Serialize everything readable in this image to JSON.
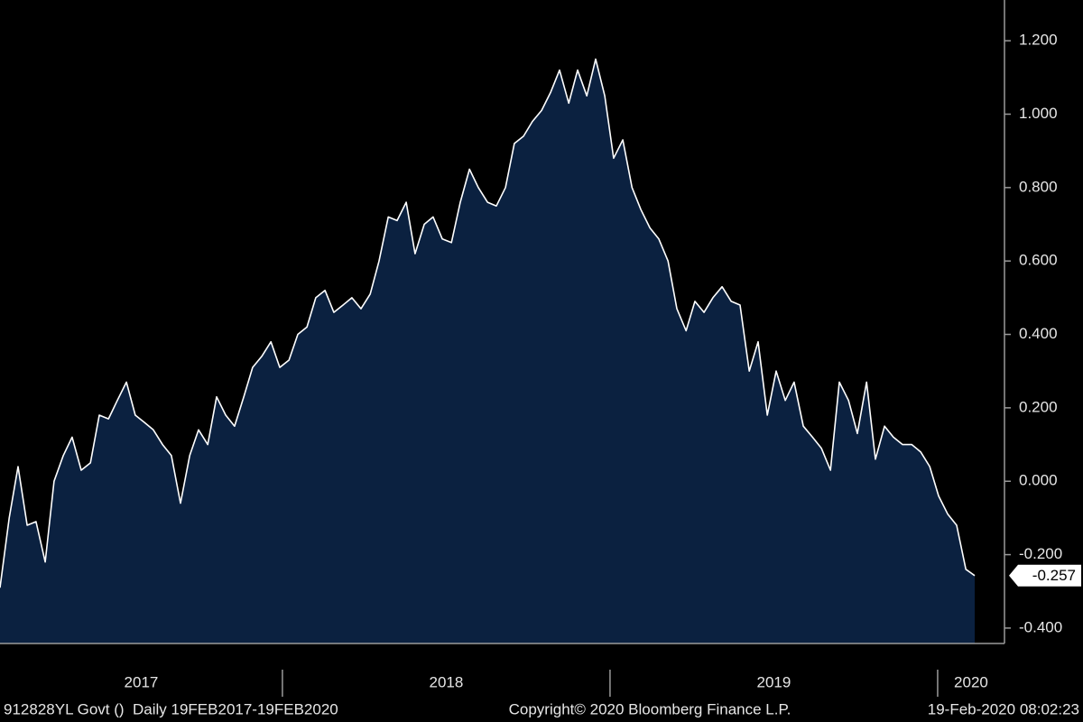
{
  "chart_data": {
    "type": "area",
    "x": [
      2017.138,
      2017.166,
      2017.193,
      2017.221,
      2017.248,
      2017.276,
      2017.303,
      2017.331,
      2017.358,
      2017.386,
      2017.414,
      2017.441,
      2017.469,
      2017.496,
      2017.524,
      2017.551,
      2017.579,
      2017.606,
      2017.634,
      2017.661,
      2017.689,
      2017.717,
      2017.744,
      2017.772,
      2017.799,
      2017.827,
      2017.854,
      2017.882,
      2017.909,
      2017.937,
      2017.965,
      2017.992,
      2018.02,
      2018.047,
      2018.075,
      2018.102,
      2018.13,
      2018.157,
      2018.185,
      2018.212,
      2018.24,
      2018.268,
      2018.295,
      2018.323,
      2018.35,
      2018.378,
      2018.405,
      2018.433,
      2018.46,
      2018.488,
      2018.516,
      2018.543,
      2018.571,
      2018.598,
      2018.626,
      2018.653,
      2018.681,
      2018.708,
      2018.736,
      2018.763,
      2018.791,
      2018.819,
      2018.846,
      2018.874,
      2018.901,
      2018.929,
      2018.956,
      2018.984,
      2019.011,
      2019.039,
      2019.067,
      2019.094,
      2019.122,
      2019.149,
      2019.177,
      2019.204,
      2019.232,
      2019.259,
      2019.287,
      2019.314,
      2019.342,
      2019.37,
      2019.397,
      2019.425,
      2019.452,
      2019.48,
      2019.507,
      2019.535,
      2019.562,
      2019.59,
      2019.618,
      2019.645,
      2019.673,
      2019.7,
      2019.728,
      2019.755,
      2019.783,
      2019.81,
      2019.838,
      2019.865,
      2019.893,
      2019.921,
      2019.948,
      2019.976,
      2020.003,
      2020.031,
      2020.058,
      2020.086,
      2020.113
    ],
    "series": [
      {
        "color": "#ffffff",
        "fill": "#0b2140",
        "values": [
          -0.29,
          -0.1,
          0.04,
          -0.12,
          -0.11,
          -0.22,
          0.0,
          0.07,
          0.12,
          0.03,
          0.05,
          0.18,
          0.17,
          0.22,
          0.27,
          0.18,
          0.16,
          0.14,
          0.1,
          0.07,
          -0.06,
          0.07,
          0.14,
          0.1,
          0.23,
          0.18,
          0.15,
          0.23,
          0.31,
          0.34,
          0.38,
          0.31,
          0.33,
          0.4,
          0.42,
          0.5,
          0.52,
          0.46,
          0.48,
          0.5,
          0.47,
          0.51,
          0.6,
          0.72,
          0.71,
          0.76,
          0.62,
          0.7,
          0.72,
          0.66,
          0.65,
          0.76,
          0.85,
          0.8,
          0.76,
          0.75,
          0.8,
          0.92,
          0.94,
          0.98,
          1.01,
          1.06,
          1.12,
          1.03,
          1.12,
          1.05,
          1.15,
          1.05,
          0.88,
          0.93,
          0.8,
          0.74,
          0.69,
          0.66,
          0.6,
          0.47,
          0.41,
          0.49,
          0.46,
          0.5,
          0.53,
          0.49,
          0.48,
          0.3,
          0.38,
          0.18,
          0.3,
          0.22,
          0.27,
          0.15,
          0.12,
          0.09,
          0.03,
          0.27,
          0.22,
          0.13,
          0.27,
          0.06,
          0.15,
          0.12,
          0.1,
          0.1,
          0.08,
          0.04,
          -0.04,
          -0.09,
          -0.12,
          -0.24,
          -0.257
        ]
      }
    ],
    "xlim": [
      2017.138,
      2020.204
    ],
    "x_dividers": [
      2018,
      2019,
      2020
    ],
    "x_labels": [
      "2017",
      "2018",
      "2019",
      "2020"
    ],
    "ylim": [
      -0.442,
      1.311
    ],
    "yticks": [
      {
        "value": -0.4,
        "label": "-0.400"
      },
      {
        "value": -0.2,
        "label": "-0.200"
      },
      {
        "value": 0,
        "label": "0.000"
      },
      {
        "value": 0.2,
        "label": "0.200"
      },
      {
        "value": 0.4,
        "label": "0.400"
      },
      {
        "value": 0.6,
        "label": "0.600"
      },
      {
        "value": 0.8,
        "label": "0.800"
      },
      {
        "value": 1.0,
        "label": "1.000"
      },
      {
        "value": 1.2,
        "label": "1.200"
      }
    ],
    "footer": {
      "left": "912828YL Govt ()  Daily 19FEB2017-19FEB2020",
      "center": "Copyright© 2020 Bloomberg Finance L.P.",
      "right": "19-Feb-2020 08:02:23"
    }
  }
}
